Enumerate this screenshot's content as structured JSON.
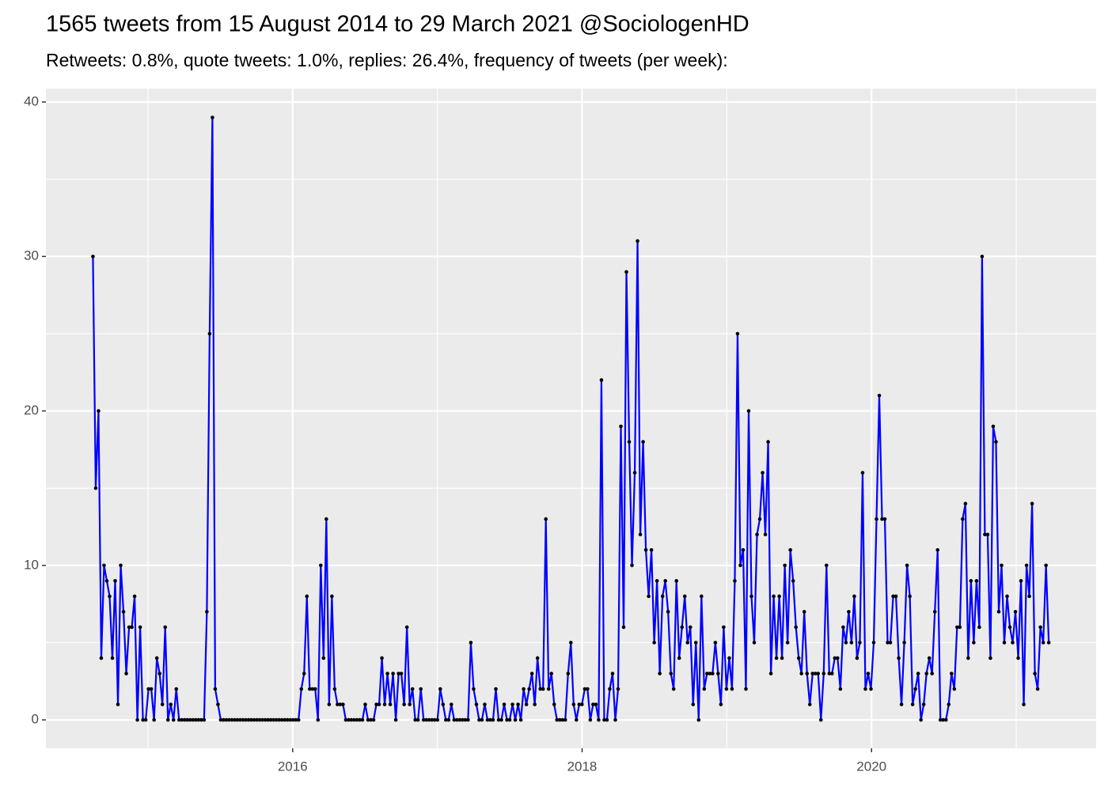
{
  "chart_data": {
    "type": "line",
    "title": "1565 tweets from 15 August 2014 to 29 March 2021 @SociologenHD",
    "subtitle": "Retweets: 0.8%, quote tweets: 1.0%, replies: 26.4%, frequency of tweets (per week):",
    "x": [
      2014.62,
      2014.6392,
      2014.6584,
      2014.6776,
      2014.6968,
      2014.716,
      2014.7352,
      2014.7544,
      2014.7736,
      2014.7928,
      2014.812,
      2014.8312,
      2014.8504,
      2014.8696,
      2014.8888,
      2014.908,
      2014.9272,
      2014.9464,
      2014.9656,
      2014.9848,
      2015.004,
      2015.0232,
      2015.0424,
      2015.0616,
      2015.0808,
      2015.1,
      2015.1192,
      2015.1384,
      2015.1576,
      2015.1768,
      2015.196,
      2015.2152,
      2015.2344,
      2015.2536,
      2015.2728,
      2015.292,
      2015.3112,
      2015.3304,
      2015.3496,
      2015.3688,
      2015.388,
      2015.4072,
      2015.4264,
      2015.4456,
      2015.4648,
      2015.484,
      2015.5032,
      2015.5224,
      2015.5416,
      2015.5608,
      2015.58,
      2015.5992,
      2015.6184,
      2015.6376,
      2015.6568,
      2015.676,
      2015.6952,
      2015.7144,
      2015.7336,
      2015.7528,
      2015.772,
      2015.7912,
      2015.8104,
      2015.8296,
      2015.8488,
      2015.868,
      2015.8872,
      2015.9064,
      2015.9256,
      2015.9448,
      2015.964,
      2015.9832,
      2016.0024,
      2016.0216,
      2016.0408,
      2016.06,
      2016.0792,
      2016.0984,
      2016.1176,
      2016.1368,
      2016.156,
      2016.1752,
      2016.1944,
      2016.2136,
      2016.2328,
      2016.252,
      2016.2712,
      2016.2904,
      2016.3096,
      2016.3288,
      2016.348,
      2016.3672,
      2016.3864,
      2016.4056,
      2016.4248,
      2016.444,
      2016.4632,
      2016.4824,
      2016.5016,
      2016.5208,
      2016.54,
      2016.5592,
      2016.5784,
      2016.5976,
      2016.6168,
      2016.636,
      2016.6552,
      2016.6744,
      2016.6936,
      2016.7128,
      2016.732,
      2016.7512,
      2016.7704,
      2016.7896,
      2016.8088,
      2016.828,
      2016.8472,
      2016.8664,
      2016.8856,
      2016.9048,
      2016.924,
      2016.9432,
      2016.9624,
      2016.9816,
      2017.0008,
      2017.02,
      2017.0392,
      2017.0584,
      2017.0776,
      2017.0968,
      2017.116,
      2017.1352,
      2017.1544,
      2017.1736,
      2017.1928,
      2017.212,
      2017.2312,
      2017.2504,
      2017.2696,
      2017.2888,
      2017.308,
      2017.3272,
      2017.3464,
      2017.3656,
      2017.3848,
      2017.404,
      2017.4232,
      2017.4424,
      2017.4616,
      2017.4808,
      2017.5,
      2017.5192,
      2017.5384,
      2017.5576,
      2017.5768,
      2017.596,
      2017.6152,
      2017.6344,
      2017.6536,
      2017.6728,
      2017.692,
      2017.7112,
      2017.7304,
      2017.7496,
      2017.7688,
      2017.788,
      2017.8072,
      2017.8264,
      2017.8456,
      2017.8648,
      2017.884,
      2017.9032,
      2017.9224,
      2017.9416,
      2017.9608,
      2017.98,
      2017.9992,
      2018.0184,
      2018.0376,
      2018.0568,
      2018.076,
      2018.0952,
      2018.1144,
      2018.1336,
      2018.1528,
      2018.172,
      2018.1912,
      2018.2104,
      2018.2296,
      2018.2488,
      2018.268,
      2018.2872,
      2018.3064,
      2018.3256,
      2018.3448,
      2018.364,
      2018.3832,
      2018.4024,
      2018.4216,
      2018.4408,
      2018.46,
      2018.4792,
      2018.4984,
      2018.5176,
      2018.5368,
      2018.556,
      2018.5752,
      2018.5944,
      2018.6136,
      2018.6328,
      2018.652,
      2018.6712,
      2018.6904,
      2018.7096,
      2018.7288,
      2018.748,
      2018.7672,
      2018.7864,
      2018.8056,
      2018.8248,
      2018.844,
      2018.8632,
      2018.8824,
      2018.9016,
      2018.9208,
      2018.94,
      2018.9592,
      2018.9784,
      2018.9976,
      2019.0168,
      2019.036,
      2019.0552,
      2019.0744,
      2019.0936,
      2019.1128,
      2019.132,
      2019.1512,
      2019.1704,
      2019.1896,
      2019.2088,
      2019.228,
      2019.2472,
      2019.2664,
      2019.2856,
      2019.3048,
      2019.324,
      2019.3432,
      2019.3624,
      2019.3816,
      2019.4008,
      2019.42,
      2019.4392,
      2019.4584,
      2019.4776,
      2019.4968,
      2019.516,
      2019.5352,
      2019.5544,
      2019.5736,
      2019.5928,
      2019.612,
      2019.6312,
      2019.6504,
      2019.6696,
      2019.6888,
      2019.708,
      2019.7272,
      2019.7464,
      2019.7656,
      2019.7848,
      2019.804,
      2019.8232,
      2019.8424,
      2019.8616,
      2019.8808,
      2019.9,
      2019.9192,
      2019.9384,
      2019.9576,
      2019.9768,
      2019.996,
      2020.0152,
      2020.0344,
      2020.0536,
      2020.0728,
      2020.092,
      2020.1112,
      2020.1304,
      2020.1496,
      2020.1688,
      2020.188,
      2020.2072,
      2020.2264,
      2020.2456,
      2020.2648,
      2020.284,
      2020.3032,
      2020.3224,
      2020.3416,
      2020.3608,
      2020.38,
      2020.3992,
      2020.4184,
      2020.4376,
      2020.4568,
      2020.476,
      2020.4952,
      2020.5144,
      2020.5336,
      2020.5528,
      2020.572,
      2020.5912,
      2020.6104,
      2020.6296,
      2020.6488,
      2020.668,
      2020.6872,
      2020.7064,
      2020.7256,
      2020.7448,
      2020.764,
      2020.7832,
      2020.8024,
      2020.8216,
      2020.8408,
      2020.86,
      2020.8792,
      2020.8984,
      2020.9176,
      2020.9368,
      2020.956,
      2020.9752,
      2020.9944,
      2021.0136,
      2021.0328,
      2021.052,
      2021.0712,
      2021.0904,
      2021.1096,
      2021.1288,
      2021.148,
      2021.1672,
      2021.1864,
      2021.2056,
      2021.2248
    ],
    "series": [
      {
        "color": "#0000ff",
        "marker_color": "#000000",
        "values": [
          30,
          15,
          20,
          4,
          10,
          9,
          8,
          4,
          9,
          1,
          10,
          7,
          3,
          6,
          6,
          8,
          0,
          6,
          0,
          0,
          2,
          2,
          0,
          4,
          3,
          1,
          6,
          0,
          1,
          0,
          2,
          0,
          0,
          0,
          0,
          0,
          0,
          0,
          0,
          0,
          0,
          7,
          25,
          39,
          2,
          1,
          0,
          0,
          0,
          0,
          0,
          0,
          0,
          0,
          0,
          0,
          0,
          0,
          0,
          0,
          0,
          0,
          0,
          0,
          0,
          0,
          0,
          0,
          0,
          0,
          0,
          0,
          0,
          0,
          0,
          2,
          3,
          8,
          2,
          2,
          2,
          0,
          10,
          4,
          13,
          1,
          8,
          2,
          1,
          1,
          1,
          0,
          0,
          0,
          0,
          0,
          0,
          0,
          1,
          0,
          0,
          0,
          1,
          1,
          4,
          1,
          3,
          1,
          3,
          0,
          3,
          3,
          1,
          6,
          1,
          2,
          0,
          0,
          2,
          0,
          0,
          0,
          0,
          0,
          0,
          2,
          1,
          0,
          0,
          1,
          0,
          0,
          0,
          0,
          0,
          0,
          5,
          2,
          1,
          0,
          0,
          1,
          0,
          0,
          0,
          2,
          0,
          0,
          1,
          0,
          0,
          1,
          0,
          1,
          0,
          2,
          1,
          2,
          3,
          1,
          4,
          2,
          2,
          13,
          2,
          3,
          1,
          0,
          0,
          0,
          0,
          3,
          5,
          1,
          0,
          1,
          1,
          2,
          2,
          0,
          1,
          1,
          0,
          22,
          0,
          0,
          2,
          3,
          0,
          2,
          19,
          6,
          29,
          18,
          10,
          16,
          31,
          12,
          18,
          11,
          8,
          11,
          5,
          9,
          3,
          8,
          9,
          7,
          3,
          2,
          9,
          4,
          6,
          8,
          5,
          6,
          1,
          5,
          0,
          8,
          2,
          3,
          3,
          3,
          5,
          3,
          1,
          6,
          2,
          4,
          2,
          9,
          25,
          10,
          11,
          2,
          20,
          8,
          5,
          12,
          13,
          16,
          12,
          18,
          3,
          8,
          4,
          8,
          4,
          10,
          5,
          11,
          9,
          6,
          4,
          3,
          7,
          3,
          1,
          3,
          3,
          3,
          0,
          3,
          10,
          3,
          3,
          4,
          4,
          2,
          6,
          5,
          7,
          5,
          8,
          4,
          5,
          16,
          2,
          3,
          2,
          5,
          13,
          21,
          13,
          13,
          5,
          5,
          8,
          8,
          4,
          1,
          5,
          10,
          8,
          1,
          2,
          3,
          0,
          1,
          3,
          4,
          3,
          7,
          11,
          0,
          0,
          0,
          1,
          3,
          2,
          6,
          6,
          13,
          14,
          4,
          9,
          5,
          9,
          6,
          30,
          12,
          12,
          4,
          19,
          18,
          7,
          10,
          5,
          8,
          6,
          5,
          7,
          4,
          9,
          1,
          10,
          8,
          14,
          3,
          2,
          6,
          5,
          10,
          5
        ]
      }
    ],
    "xlim": [
      2014.295,
      2021.552
    ],
    "xticks": [
      2016,
      2018,
      2020
    ],
    "ylim": [
      -1.84,
      40.87
    ],
    "yticks": [
      0,
      10,
      20,
      30,
      40
    ],
    "grid": true,
    "panel_color": "#ebebeb"
  }
}
